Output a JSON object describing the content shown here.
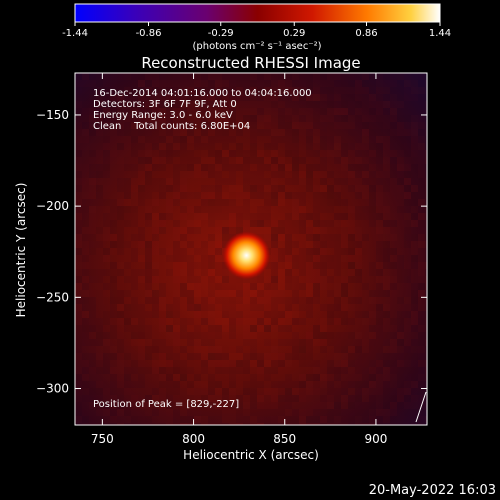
{
  "colorbar": {
    "ticks": [
      "-1.44",
      "-0.86",
      "-0.29",
      "0.29",
      "0.86",
      "1.44"
    ],
    "min": -1.44,
    "max": 1.44,
    "units": "(photons cm⁻² s⁻¹ asec⁻²)"
  },
  "chart_data": {
    "type": "heatmap",
    "title": "Reconstructed RHESSI Image",
    "xlabel": "Heliocentric X (arcsec)",
    "ylabel": "Heliocentric Y (arcsec)",
    "xlim": [
      735,
      928
    ],
    "ylim": [
      -320,
      -127
    ],
    "x_ticks": [
      750,
      800,
      850,
      900
    ],
    "y_ticks": [
      -150,
      -200,
      -250,
      -300
    ],
    "x_tick_labels": [
      "750",
      "800",
      "850",
      "900"
    ],
    "y_tick_labels": [
      "−150",
      "−200",
      "−250",
      "−300"
    ],
    "peak": [
      829,
      -227
    ],
    "annotations": [
      "16-Dec-2014 04:01:16.000 to 04:04:16.000",
      "Detectors: 3F 6F 7F 9F, Att 0",
      "Energy Range: 3.0 - 6.0 keV",
      "Clean    Total counts: 6.80E+04"
    ],
    "peak_label": "Position of Peak = [829,-227]"
  },
  "footer": {
    "timestamp": "20-May-2022 16:03"
  }
}
